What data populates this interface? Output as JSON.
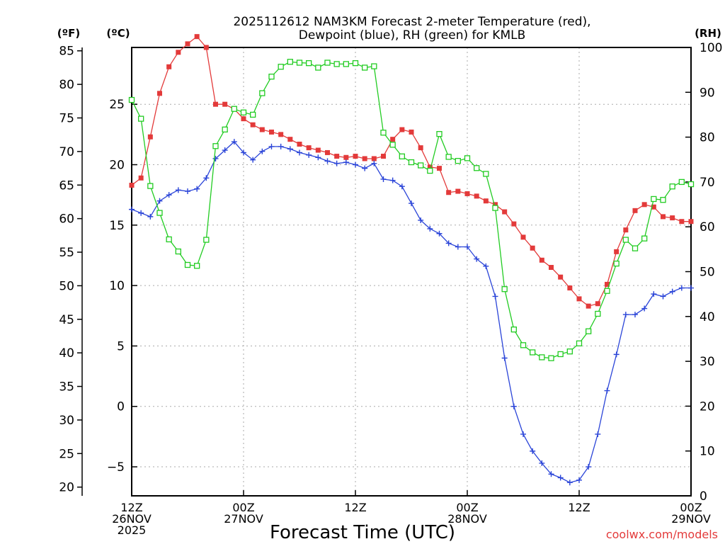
{
  "chart_data": {
    "type": "line",
    "title": [
      "2025112612 NAM3KM Forecast 2-meter Temperature (red),",
      "Dewpoint (blue), RH (green) for KMLB"
    ],
    "xlabel": "Forecast Time (UTC)",
    "watermark": "coolwx.com/models",
    "unit_labels": {
      "fahrenheit": "(ºF)",
      "celsius": "(ºC)",
      "rh": "(RH)"
    },
    "x_range_hours": [
      0,
      60
    ],
    "x_ticks": [
      {
        "hour": 0,
        "lines": [
          "12Z",
          "26NOV",
          "2025"
        ]
      },
      {
        "hour": 12,
        "lines": [
          "00Z",
          "27NOV"
        ]
      },
      {
        "hour": 24,
        "lines": [
          "12Z"
        ]
      },
      {
        "hour": 36,
        "lines": [
          "00Z",
          "28NOV"
        ]
      },
      {
        "hour": 48,
        "lines": [
          "12Z"
        ]
      },
      {
        "hour": 60,
        "lines": [
          "00Z",
          "29NOV"
        ]
      }
    ],
    "y_celsius": {
      "range": [
        -7.4,
        29.7
      ],
      "ticks": [
        -5,
        0,
        5,
        10,
        15,
        20,
        25
      ]
    },
    "y_fahrenheit": {
      "range": [
        18.7,
        85.5
      ],
      "ticks": [
        20,
        25,
        30,
        35,
        40,
        45,
        50,
        55,
        60,
        65,
        70,
        75,
        80,
        85
      ]
    },
    "y_rh": {
      "range": [
        0,
        100
      ],
      "ticks": [
        0,
        10,
        20,
        30,
        40,
        50,
        60,
        70,
        80,
        90,
        100
      ]
    },
    "grid": true,
    "series": [
      {
        "name": "2-meter Temperature",
        "axis": "celsius",
        "color": "#e33a3a",
        "marker": "filled-square",
        "x": [
          0,
          1,
          2,
          3,
          4,
          5,
          6,
          7,
          8,
          9,
          10,
          11,
          12,
          13,
          14,
          15,
          16,
          17,
          18,
          19,
          20,
          21,
          22,
          23,
          24,
          25,
          26,
          27,
          28,
          29,
          30,
          31,
          32,
          33,
          34,
          35,
          36,
          37,
          38,
          39,
          40,
          41,
          42,
          43,
          44,
          45,
          46,
          47,
          48,
          49,
          50,
          51,
          52,
          53,
          54,
          55,
          56,
          57,
          58,
          59,
          60
        ],
        "values": [
          18.3,
          18.9,
          22.3,
          25.9,
          28.1,
          29.3,
          30.0,
          30.6,
          29.7,
          25.0,
          25.0,
          24.6,
          23.8,
          23.3,
          22.9,
          22.7,
          22.5,
          22.1,
          21.7,
          21.4,
          21.2,
          21.0,
          20.7,
          20.6,
          20.7,
          20.5,
          20.5,
          20.7,
          22.1,
          22.9,
          22.7,
          21.4,
          19.8,
          19.7,
          17.7,
          17.8,
          17.6,
          17.4,
          17.0,
          16.7,
          16.1,
          15.1,
          14.0,
          13.1,
          12.1,
          11.5,
          10.7,
          9.8,
          8.9,
          8.3,
          8.5,
          10.1,
          12.8,
          14.6,
          16.2,
          16.7,
          16.5,
          15.7,
          15.6,
          15.3,
          15.3
        ]
      },
      {
        "name": "Dewpoint",
        "axis": "celsius",
        "color": "#2a44d8",
        "marker": "plus",
        "x": [
          0,
          1,
          2,
          3,
          4,
          5,
          6,
          7,
          8,
          9,
          10,
          11,
          12,
          13,
          14,
          15,
          16,
          17,
          18,
          19,
          20,
          21,
          22,
          23,
          24,
          25,
          26,
          27,
          28,
          29,
          30,
          31,
          32,
          33,
          34,
          35,
          36,
          37,
          38,
          39,
          40,
          41,
          42,
          43,
          44,
          45,
          46,
          47,
          48,
          49,
          50,
          51,
          52,
          53,
          54,
          55,
          56,
          57,
          58,
          59,
          60
        ],
        "values": [
          16.3,
          16.0,
          15.7,
          17.0,
          17.5,
          17.9,
          17.8,
          18.0,
          18.9,
          20.5,
          21.2,
          21.9,
          21.0,
          20.4,
          21.1,
          21.5,
          21.5,
          21.3,
          21.0,
          20.8,
          20.6,
          20.3,
          20.1,
          20.2,
          20.0,
          19.7,
          20.1,
          18.8,
          18.7,
          18.2,
          16.8,
          15.4,
          14.7,
          14.3,
          13.5,
          13.2,
          13.2,
          12.2,
          11.6,
          9.1,
          4.0,
          0.0,
          -2.3,
          -3.7,
          -4.7,
          -5.6,
          -5.9,
          -6.3,
          -6.1,
          -5.0,
          -2.3,
          1.3,
          4.3,
          7.6,
          7.6,
          8.1,
          9.3,
          9.1,
          9.5,
          9.8,
          9.8
        ]
      },
      {
        "name": "RH",
        "axis": "rh",
        "color": "#22cc22",
        "marker": "open-square",
        "x": [
          0,
          1,
          2,
          3,
          4,
          5,
          6,
          7,
          8,
          9,
          10,
          11,
          12,
          13,
          14,
          15,
          16,
          17,
          18,
          19,
          20,
          21,
          22,
          23,
          24,
          25,
          26,
          27,
          28,
          29,
          30,
          31,
          32,
          33,
          34,
          35,
          36,
          37,
          38,
          39,
          40,
          41,
          42,
          43,
          44,
          45,
          46,
          47,
          48,
          49,
          50,
          51,
          52,
          53,
          54,
          55,
          56,
          57,
          58,
          59,
          60
        ],
        "values": [
          88.3,
          84.1,
          69.1,
          63.1,
          57.2,
          54.5,
          51.5,
          51.3,
          57.1,
          78.0,
          81.7,
          86.3,
          85.5,
          85.0,
          89.8,
          93.5,
          95.7,
          96.8,
          96.6,
          96.5,
          95.5,
          96.6,
          96.3,
          96.3,
          96.5,
          95.5,
          95.8,
          81.0,
          78.3,
          75.7,
          74.4,
          73.7,
          72.5,
          80.7,
          75.6,
          74.7,
          75.3,
          73.1,
          71.8,
          64.2,
          46.1,
          37.1,
          33.6,
          32.0,
          30.9,
          30.7,
          31.6,
          32.2,
          34.0,
          36.7,
          40.6,
          45.7,
          51.8,
          57.1,
          55.2,
          57.4,
          66.2,
          66.0,
          69.0,
          70.0,
          69.5
        ]
      }
    ]
  }
}
